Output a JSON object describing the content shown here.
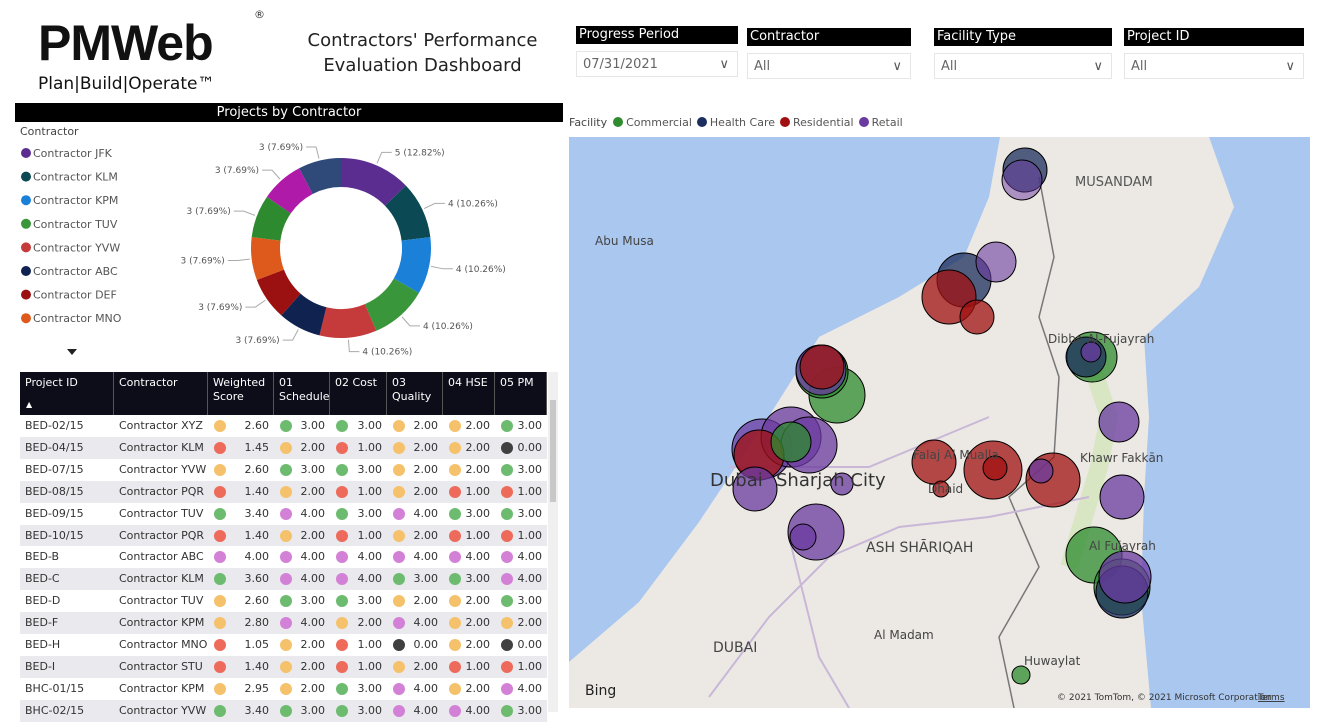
{
  "header": {
    "logo": "PMWeb",
    "registered": "®",
    "tagline": "Plan|Build|Operate™",
    "title_line1": "Contractors' Performance",
    "title_line2": "Evaluation Dashboard"
  },
  "filters": [
    {
      "label": "Progress Period",
      "value": "07/31/2021"
    },
    {
      "label": "Contractor",
      "value": "All"
    },
    {
      "label": "Facility Type",
      "value": "All"
    },
    {
      "label": "Project ID",
      "value": "All"
    }
  ],
  "chart_data": {
    "type": "pie",
    "title": "Projects by Contractor",
    "legend_title": "Contractor",
    "categories": [
      "Contractor JFK",
      "Contractor KLM",
      "Contractor KPM",
      "Contractor TUV",
      "Contractor YVW",
      "Contractor ABC",
      "Contractor DEF",
      "Contractor MNO",
      null,
      null,
      null
    ],
    "values": [
      5,
      4,
      4,
      4,
      4,
      3,
      3,
      3,
      3,
      3,
      3
    ],
    "value_labels": [
      "5 (12.82%)",
      "4 (10.26%)",
      "4 (10.26%)",
      "4 (10.26%)",
      "4 (10.26%)",
      "3 (7.69%)",
      "3 (7.69%)",
      "3 (7.69%)",
      "3 (7.69%)",
      "3 (7.69%)",
      "3 (7.69%)"
    ],
    "colors": [
      "#5c2d91",
      "#0b4a55",
      "#1b80d8",
      "#3a963a",
      "#c53a3a",
      "#10224f",
      "#9b1010",
      "#de5a1c",
      "#2e8a2e",
      "#b01aa8",
      "#2f4a78"
    ],
    "legend": "left"
  },
  "table": {
    "columns": [
      "Project ID",
      "Contractor",
      "Weighted Score",
      "01 Schedule",
      "02 Cost",
      "03 Quality",
      "04 HSE",
      "05 PM"
    ],
    "palette": {
      "y": "#f5c26b",
      "g": "#6dbb6f",
      "r": "#ee6a5a",
      "m": "#d381d6",
      "k": "#404040"
    },
    "rows": [
      {
        "cells": [
          "BED-02/15",
          "Contractor XYZ",
          "2.60",
          "3.00",
          "3.00",
          "2.00",
          "2.00",
          "3.00"
        ],
        "dots": [
          "y",
          "g",
          "g",
          "y",
          "y",
          "g"
        ]
      },
      {
        "cells": [
          "BED-04/15",
          "Contractor KLM",
          "1.45",
          "2.00",
          "1.00",
          "2.00",
          "2.00",
          "0.00"
        ],
        "dots": [
          "r",
          "y",
          "r",
          "y",
          "y",
          "k"
        ]
      },
      {
        "cells": [
          "BED-07/15",
          "Contractor YVW",
          "2.60",
          "3.00",
          "3.00",
          "2.00",
          "2.00",
          "3.00"
        ],
        "dots": [
          "y",
          "g",
          "g",
          "y",
          "y",
          "g"
        ]
      },
      {
        "cells": [
          "BED-08/15",
          "Contractor PQR",
          "1.40",
          "2.00",
          "1.00",
          "2.00",
          "1.00",
          "1.00"
        ],
        "dots": [
          "r",
          "y",
          "r",
          "y",
          "r",
          "r"
        ]
      },
      {
        "cells": [
          "BED-09/15",
          "Contractor TUV",
          "3.40",
          "4.00",
          "3.00",
          "4.00",
          "3.00",
          "3.00"
        ],
        "dots": [
          "g",
          "m",
          "g",
          "m",
          "g",
          "g"
        ]
      },
      {
        "cells": [
          "BED-10/15",
          "Contractor PQR",
          "1.40",
          "2.00",
          "1.00",
          "2.00",
          "1.00",
          "1.00"
        ],
        "dots": [
          "r",
          "y",
          "r",
          "y",
          "r",
          "r"
        ]
      },
      {
        "cells": [
          "BED-B",
          "Contractor ABC",
          "4.00",
          "4.00",
          "4.00",
          "4.00",
          "4.00",
          "4.00"
        ],
        "dots": [
          "m",
          "m",
          "m",
          "m",
          "m",
          "m"
        ]
      },
      {
        "cells": [
          "BED-C",
          "Contractor KLM",
          "3.60",
          "4.00",
          "4.00",
          "3.00",
          "3.00",
          "4.00"
        ],
        "dots": [
          "g",
          "m",
          "m",
          "g",
          "g",
          "m"
        ]
      },
      {
        "cells": [
          "BED-D",
          "Contractor TUV",
          "2.60",
          "3.00",
          "3.00",
          "2.00",
          "2.00",
          "3.00"
        ],
        "dots": [
          "y",
          "g",
          "g",
          "y",
          "y",
          "g"
        ]
      },
      {
        "cells": [
          "BED-F",
          "Contractor KPM",
          "2.80",
          "4.00",
          "2.00",
          "4.00",
          "2.00",
          "2.00"
        ],
        "dots": [
          "y",
          "m",
          "y",
          "m",
          "y",
          "y"
        ]
      },
      {
        "cells": [
          "BED-H",
          "Contractor MNO",
          "1.05",
          "2.00",
          "1.00",
          "0.00",
          "2.00",
          "0.00"
        ],
        "dots": [
          "r",
          "y",
          "r",
          "k",
          "y",
          "k"
        ]
      },
      {
        "cells": [
          "BED-I",
          "Contractor STU",
          "1.40",
          "2.00",
          "1.00",
          "2.00",
          "1.00",
          "1.00"
        ],
        "dots": [
          "r",
          "y",
          "r",
          "y",
          "r",
          "r"
        ]
      },
      {
        "cells": [
          "BHC-01/15",
          "Contractor KPM",
          "2.95",
          "2.00",
          "3.00",
          "4.00",
          "2.00",
          "4.00"
        ],
        "dots": [
          "y",
          "y",
          "g",
          "m",
          "y",
          "m"
        ]
      },
      {
        "cells": [
          "BHC-02/15",
          "Contractor YVW",
          "3.40",
          "3.00",
          "3.00",
          "4.00",
          "4.00",
          "3.00"
        ],
        "dots": [
          "g",
          "g",
          "g",
          "m",
          "m",
          "g"
        ]
      }
    ]
  },
  "map": {
    "legend_title": "Facility",
    "legend": [
      {
        "name": "Commercial",
        "color": "#2e8b2e"
      },
      {
        "name": "Health Care",
        "color": "#1c2e5e"
      },
      {
        "name": "Residential",
        "color": "#a01010"
      },
      {
        "name": "Retail",
        "color": "#6a3aa0"
      }
    ],
    "places": [
      "Abu Musa",
      "MUSANDAM",
      "Dibba Al-Fujayrah",
      "Khawr Fakkān",
      "Dubai",
      "Sharjah City",
      "Falaj Al Mualla",
      "Dhaid",
      "ASH SHĀRIQAH",
      "Al Fujayrah",
      "Al Madam",
      "DUBAI",
      "Huwaylat"
    ],
    "brand": "Bing",
    "copyright": "© 2021 TomTom, © 2021 Microsoft Corporation",
    "terms": "Terms"
  }
}
